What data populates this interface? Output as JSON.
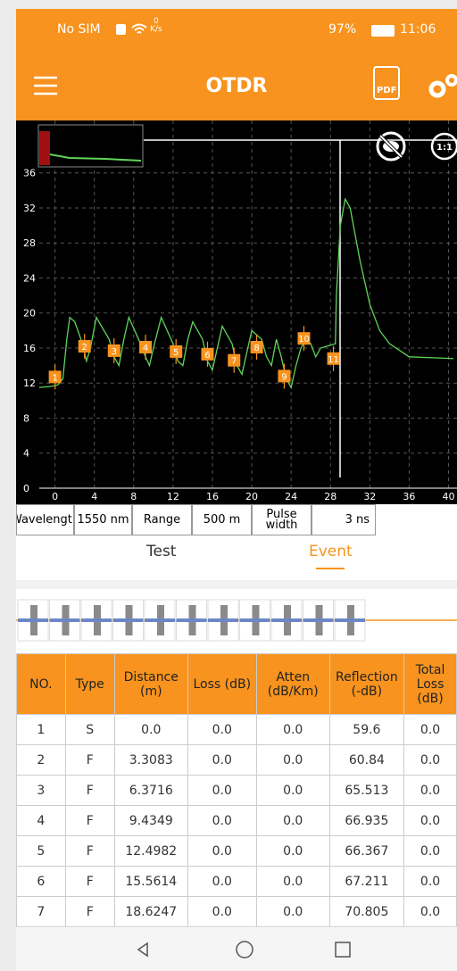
{
  "status_bar": {
    "carrier": "No SIM",
    "speed_value": "0",
    "speed_unit": "K/s",
    "battery": "97%",
    "time": "11:06"
  },
  "header": {
    "title": "OTDR",
    "pdf_icon": "PDF"
  },
  "chart_data": {
    "type": "line",
    "zoom_label": "1:1",
    "color": "#5fd45a",
    "xlim": [
      -1.6,
      40.5
    ],
    "ylim": [
      0,
      37.5
    ],
    "xticks": [
      0,
      4,
      8,
      12,
      16,
      20,
      24,
      28,
      32,
      36,
      40
    ],
    "yticks": [
      0,
      4,
      8,
      12,
      16,
      20,
      24,
      28,
      32,
      36
    ],
    "grid": true,
    "x": [
      -1.6,
      -0.5,
      0.3,
      0.8,
      1.2,
      1.5,
      2,
      2.8,
      3.2,
      3.6,
      4.2,
      5.5,
      6,
      6.5,
      7,
      7.5,
      8.5,
      9.2,
      9.6,
      10,
      10.8,
      12,
      12.5,
      13,
      13.5,
      14,
      15,
      15.5,
      16,
      16.5,
      17,
      18,
      18.5,
      19,
      19.5,
      20,
      21,
      21.5,
      22,
      22.5,
      23,
      23.5,
      24,
      24.5,
      25,
      25.5,
      26,
      26.5,
      27,
      28.5,
      28.6,
      29,
      29.5,
      30,
      31,
      32,
      33,
      34,
      36,
      40.5
    ],
    "series": [
      {
        "values": [
          11.5,
          11.6,
          11.8,
          12.5,
          17,
          19.5,
          19,
          16.5,
          14.5,
          16,
          19.5,
          17,
          15,
          14,
          17,
          19.5,
          17,
          15,
          14,
          16,
          19.5,
          16.5,
          14.5,
          14,
          17,
          19,
          17,
          14.5,
          13.5,
          16,
          18.5,
          16.5,
          14,
          13,
          15.5,
          18,
          17,
          15,
          14,
          17,
          15,
          12.5,
          11.5,
          14,
          16,
          17,
          16.5,
          15,
          16,
          16.5,
          22,
          30,
          33,
          32,
          26,
          21,
          18,
          16.5,
          15,
          14.8
        ]
      }
    ],
    "events": {
      "labels": [
        "1",
        "2",
        "3",
        "4",
        "5",
        "6",
        "7",
        "8",
        "9",
        "10",
        "11"
      ],
      "x": [
        0,
        3.0,
        6.0,
        9.2,
        12.3,
        15.5,
        18.2,
        20.5,
        23.3,
        25.3,
        28.3
      ],
      "y": [
        12.7,
        16.2,
        15.7,
        16.1,
        15.6,
        15.3,
        14.6,
        16.1,
        12.8,
        17.1,
        14.8
      ]
    }
  },
  "params": [
    "Wavelength",
    "1550 nm",
    "Range",
    "500 m",
    "Pulse width",
    "3 ns"
  ],
  "tabs": [
    "Test",
    "Event"
  ],
  "table": {
    "header": [
      "NO.",
      "Type",
      "Distance (m)",
      "Loss (dB)",
      "Atten (dB/Km)",
      "Reflection (-dB)",
      "Total Loss (dB)"
    ],
    "rows": [
      [
        "1",
        "S",
        "0.0",
        "0.0",
        "0.0",
        "59.6",
        "0.0"
      ],
      [
        "2",
        "F",
        "3.3083",
        "0.0",
        "0.0",
        "60.84",
        "0.0"
      ],
      [
        "3",
        "F",
        "6.3716",
        "0.0",
        "0.0",
        "65.513",
        "0.0"
      ],
      [
        "4",
        "F",
        "9.4349",
        "0.0",
        "0.0",
        "66.935",
        "0.0"
      ],
      [
        "5",
        "F",
        "12.4982",
        "0.0",
        "0.0",
        "66.367",
        "0.0"
      ],
      [
        "6",
        "F",
        "15.5614",
        "0.0",
        "0.0",
        "67.211",
        "0.0"
      ],
      [
        "7",
        "F",
        "18.6247",
        "0.0",
        "0.0",
        "70.805",
        "0.0"
      ]
    ]
  }
}
